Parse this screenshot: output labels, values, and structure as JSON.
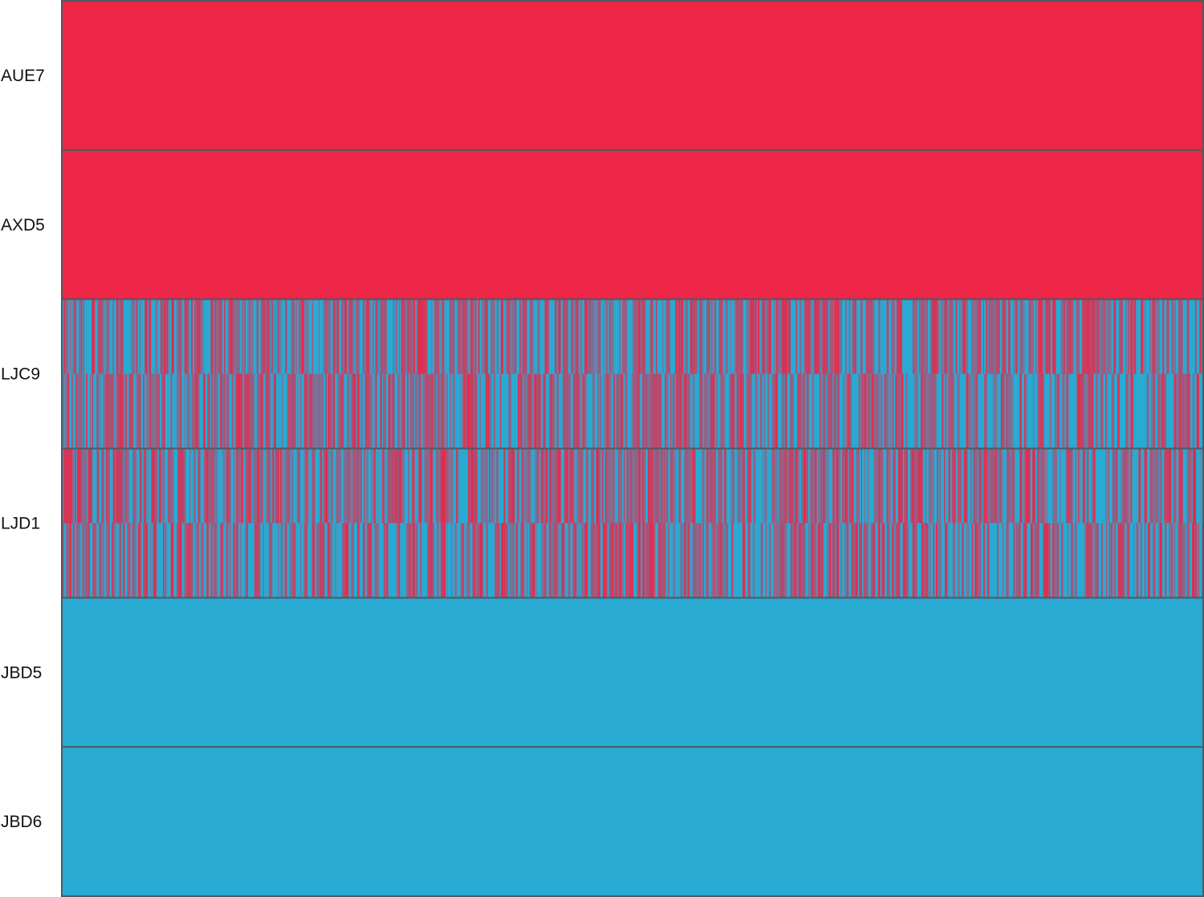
{
  "chart_data": {
    "type": "heatmap",
    "title": "",
    "xlabel": "",
    "ylabel": "",
    "rows": [
      {
        "label": "AUE7",
        "pattern": "solid-red",
        "track_values": [
          0.0,
          0.0
        ]
      },
      {
        "label": "AXD5",
        "pattern": "solid-red",
        "track_values": [
          0.0,
          0.0
        ]
      },
      {
        "label": "LJC9",
        "pattern": "mixed",
        "track_values": [
          0.5,
          0.5
        ]
      },
      {
        "label": "LJD1",
        "pattern": "mixed",
        "track_values": [
          0.5,
          0.5
        ]
      },
      {
        "label": "JBD5",
        "pattern": "solid-blue",
        "track_values": [
          1.0,
          1.0
        ]
      },
      {
        "label": "JBD6",
        "pattern": "solid-blue",
        "track_values": [
          1.0,
          1.0
        ]
      }
    ],
    "tracks_per_row": 2,
    "columns": 1400,
    "colors": {
      "red": "#ED2647",
      "blue": "#28AAD3",
      "border": "#4D5A63"
    },
    "grid": false,
    "legend": "none"
  }
}
